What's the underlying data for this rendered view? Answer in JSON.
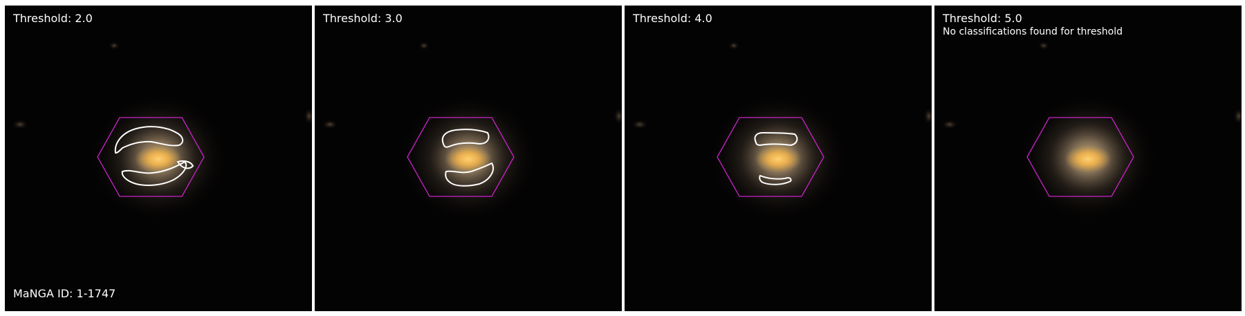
{
  "manga_id_label": "MaNGA ID: 1-1747",
  "colors": {
    "background": "#040303",
    "hexagon": "#cc22cc",
    "contour": "#ffffff",
    "galaxy_core": "#f2b24a",
    "galaxy_halo": "#b8a078"
  },
  "panels": [
    {
      "threshold_label": "Threshold: 2.0",
      "note": ""
    },
    {
      "threshold_label": "Threshold: 3.0",
      "note": ""
    },
    {
      "threshold_label": "Threshold: 4.0",
      "note": ""
    },
    {
      "threshold_label": "Threshold: 5.0",
      "note": "No classifications found for threshold"
    }
  ]
}
